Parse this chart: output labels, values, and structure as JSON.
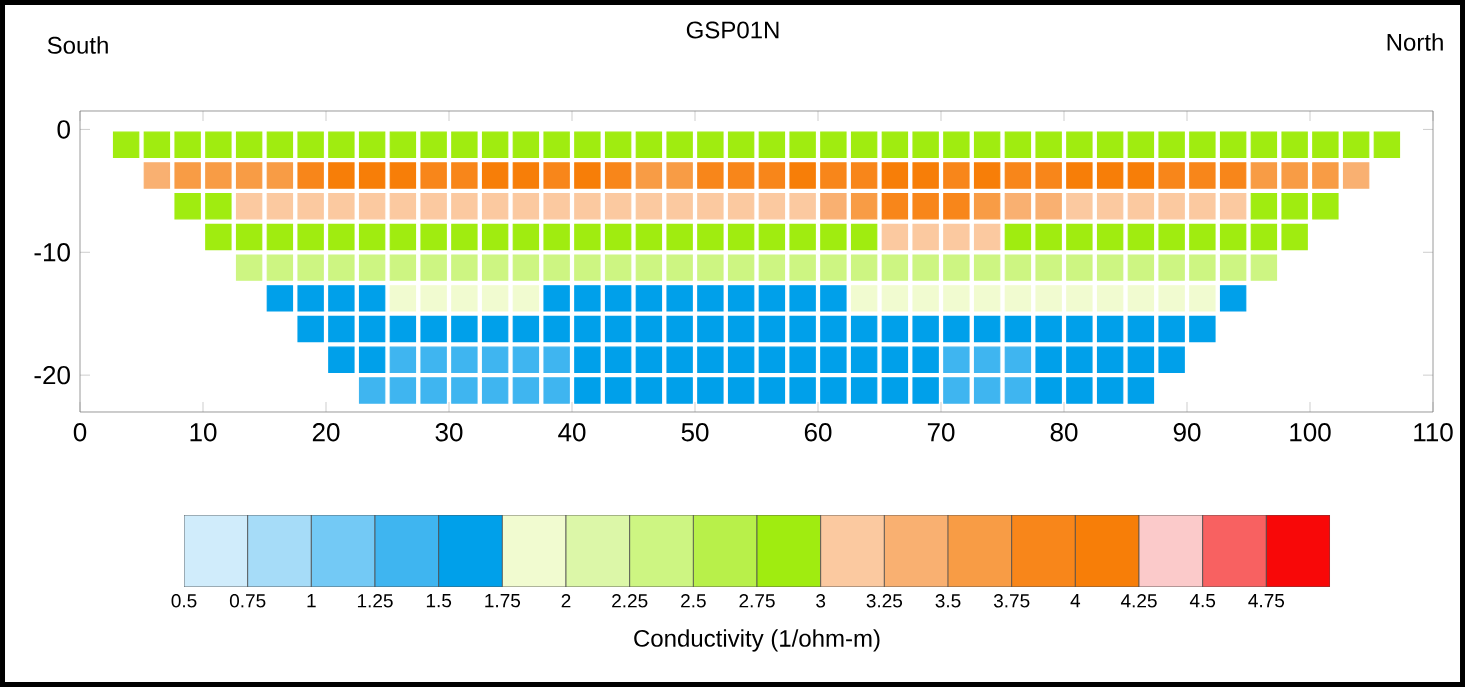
{
  "chart_data": {
    "type": "scatter",
    "title": "GSP01N",
    "annotations": [
      "South",
      "North"
    ],
    "xlim": [
      0,
      110
    ],
    "xticks": [
      0,
      10,
      20,
      30,
      40,
      50,
      60,
      70,
      80,
      90,
      100,
      110
    ],
    "ylim": [
      -23,
      1.5
    ],
    "yticks": [
      0,
      -10,
      -20
    ],
    "marker": "square",
    "series": [
      {
        "x": [
          3.75,
          6.25,
          8.75,
          11.25,
          13.75,
          16.25,
          18.75,
          21.25,
          23.75,
          26.25,
          28.75,
          31.25,
          33.75,
          36.25,
          38.75,
          41.25,
          43.75,
          46.25,
          48.75,
          51.25,
          53.75,
          56.25,
          58.75,
          61.25,
          63.75,
          66.25,
          68.75,
          71.25,
          73.75,
          76.25,
          78.75,
          81.25,
          83.75,
          86.25,
          88.75,
          91.25,
          93.75,
          96.25,
          98.75,
          101.25,
          103.75,
          106.25
        ],
        "values": [
          -1.25,
          -1.25,
          -1.25,
          -1.25,
          -1.25,
          -1.25,
          -1.25,
          -1.25,
          -1.25,
          -1.25,
          -1.25,
          -1.25,
          -1.25,
          -1.25,
          -1.25,
          -1.25,
          -1.25,
          -1.25,
          -1.25,
          -1.25,
          -1.25,
          -1.25,
          -1.25,
          -1.25,
          -1.25,
          -1.25,
          -1.25,
          -1.25,
          -1.25,
          -1.25,
          -1.25,
          -1.25,
          -1.25,
          -1.25,
          -1.25,
          -1.25,
          -1.25,
          -1.25,
          -1.25,
          -1.25,
          -1.25,
          -1.25
        ],
        "color": "#a0ec10",
        "cvalues": [
          2.9,
          2.9,
          2.9,
          2.9,
          2.9,
          2.9,
          2.9,
          2.9,
          2.9,
          2.9,
          2.9,
          2.9,
          2.9,
          2.9,
          2.9,
          2.9,
          2.9,
          2.9,
          2.9,
          2.9,
          2.9,
          2.9,
          2.9,
          2.9,
          2.9,
          2.9,
          2.9,
          2.9,
          2.9,
          2.9,
          2.9,
          2.9,
          2.9,
          2.9,
          2.9,
          2.9,
          2.9,
          2.9,
          2.9,
          2.9,
          2.9,
          2.9
        ]
      },
      {
        "x": [
          6.25,
          8.75,
          11.25,
          13.75,
          16.25,
          18.75,
          21.25,
          23.75,
          26.25,
          28.75,
          31.25,
          33.75,
          36.25,
          38.75,
          41.25,
          43.75,
          46.25,
          48.75,
          51.25,
          53.75,
          56.25,
          58.75,
          61.25,
          63.75,
          66.25,
          68.75,
          71.25,
          73.75,
          76.25,
          78.75,
          81.25,
          83.75,
          86.25,
          88.75,
          91.25,
          93.75,
          96.25,
          98.75,
          101.25,
          103.75
        ],
        "values": [
          -3.75,
          -3.75,
          -3.75,
          -3.75,
          -3.75,
          -3.75,
          -3.75,
          -3.75,
          -3.75,
          -3.75,
          -3.75,
          -3.75,
          -3.75,
          -3.75,
          -3.75,
          -3.75,
          -3.75,
          -3.75,
          -3.75,
          -3.75,
          -3.75,
          -3.75,
          -3.75,
          -3.75,
          -3.75,
          -3.75,
          -3.75,
          -3.75,
          -3.75,
          -3.75,
          -3.75,
          -3.75,
          -3.75,
          -3.75,
          -3.75,
          -3.75,
          -3.75,
          -3.75,
          -3.75,
          -3.75
        ],
        "colors": [
          "#f9b071",
          "#f89c45",
          "#f89c45",
          "#f89c45",
          "#f89c45",
          "#f8861a",
          "#f77e08",
          "#f77e08",
          "#f77e08",
          "#f8861a",
          "#f8861a",
          "#f77e08",
          "#f77e08",
          "#f8861a",
          "#f77e08",
          "#f8861a",
          "#f89c45",
          "#f89c45",
          "#f8861a",
          "#f8861a",
          "#f8861a",
          "#f77e08",
          "#f8861a",
          "#f8861a",
          "#f77e08",
          "#f77e08",
          "#f8861a",
          "#f77e08",
          "#f8861a",
          "#f8861a",
          "#f77e08",
          "#f77e08",
          "#f77e08",
          "#f8861a",
          "#f8861a",
          "#f8861a",
          "#f89c45",
          "#f89c45",
          "#f89c45",
          "#f9b071"
        ],
        "cvalues": [
          3.4,
          3.6,
          3.6,
          3.6,
          3.6,
          3.8,
          4.1,
          4.1,
          4.1,
          3.8,
          3.8,
          4.1,
          4.1,
          3.8,
          4.1,
          3.8,
          3.6,
          3.6,
          3.8,
          3.8,
          3.8,
          4.1,
          3.8,
          3.8,
          4.1,
          4.1,
          3.8,
          4.1,
          3.8,
          3.8,
          4.1,
          4.1,
          4.1,
          3.8,
          3.8,
          3.8,
          3.6,
          3.6,
          3.6,
          3.4
        ]
      },
      {
        "x": [
          8.75,
          11.25,
          13.75,
          16.25,
          18.75,
          21.25,
          23.75,
          26.25,
          28.75,
          31.25,
          33.75,
          36.25,
          38.75,
          41.25,
          43.75,
          46.25,
          48.75,
          51.25,
          53.75,
          56.25,
          58.75,
          61.25,
          63.75,
          66.25,
          68.75,
          71.25,
          73.75,
          76.25,
          78.75,
          81.25,
          83.75,
          86.25,
          88.75,
          91.25,
          93.75,
          96.25,
          98.75,
          101.25
        ],
        "values": [
          -6.25,
          -6.25,
          -6.25,
          -6.25,
          -6.25,
          -6.25,
          -6.25,
          -6.25,
          -6.25,
          -6.25,
          -6.25,
          -6.25,
          -6.25,
          -6.25,
          -6.25,
          -6.25,
          -6.25,
          -6.25,
          -6.25,
          -6.25,
          -6.25,
          -6.25,
          -6.25,
          -6.25,
          -6.25,
          -6.25,
          -6.25,
          -6.25,
          -6.25,
          -6.25,
          -6.25,
          -6.25,
          -6.25,
          -6.25,
          -6.25,
          -6.25,
          -6.25,
          -6.25
        ],
        "colors": [
          "#a0ec10",
          "#a0ec10",
          "#fbc9a0",
          "#fbc9a0",
          "#fbc9a0",
          "#fbc9a0",
          "#fbc9a0",
          "#fbc9a0",
          "#fbc9a0",
          "#fbc9a0",
          "#fbc9a0",
          "#fbc9a0",
          "#fbc9a0",
          "#fbc9a0",
          "#fbc9a0",
          "#fbc9a0",
          "#fbc9a0",
          "#fbc9a0",
          "#fbc9a0",
          "#fbc9a0",
          "#fbc9a0",
          "#f9b071",
          "#f89c45",
          "#f8861a",
          "#f8861a",
          "#f8861a",
          "#f89c45",
          "#f9b071",
          "#f9b071",
          "#fbc9a0",
          "#fbc9a0",
          "#fbc9a0",
          "#fbc9a0",
          "#fbc9a0",
          "#fbc9a0",
          "#a0ec10",
          "#a0ec10",
          "#a0ec10"
        ],
        "cvalues": [
          2.9,
          2.9,
          3.1,
          3.1,
          3.1,
          3.1,
          3.1,
          3.1,
          3.1,
          3.1,
          3.1,
          3.1,
          3.1,
          3.1,
          3.1,
          3.1,
          3.1,
          3.1,
          3.1,
          3.1,
          3.1,
          3.4,
          3.6,
          3.9,
          3.9,
          3.9,
          3.6,
          3.4,
          3.4,
          3.1,
          3.1,
          3.1,
          3.1,
          3.1,
          3.1,
          2.9,
          2.9,
          2.9
        ]
      },
      {
        "x": [
          11.25,
          13.75,
          16.25,
          18.75,
          21.25,
          23.75,
          26.25,
          28.75,
          31.25,
          33.75,
          36.25,
          38.75,
          41.25,
          43.75,
          46.25,
          48.75,
          51.25,
          53.75,
          56.25,
          58.75,
          61.25,
          63.75,
          66.25,
          68.75,
          71.25,
          73.75,
          76.25,
          78.75,
          81.25,
          83.75,
          86.25,
          88.75,
          91.25,
          93.75,
          96.25,
          98.75
        ],
        "values": [
          -8.75,
          -8.75,
          -8.75,
          -8.75,
          -8.75,
          -8.75,
          -8.75,
          -8.75,
          -8.75,
          -8.75,
          -8.75,
          -8.75,
          -8.75,
          -8.75,
          -8.75,
          -8.75,
          -8.75,
          -8.75,
          -8.75,
          -8.75,
          -8.75,
          -8.75,
          -8.75,
          -8.75,
          -8.75,
          -8.75,
          -8.75,
          -8.75,
          -8.75,
          -8.75,
          -8.75,
          -8.75,
          -8.75,
          -8.75,
          -8.75,
          -8.75
        ],
        "colors": [
          "#a0ec10",
          "#a0ec10",
          "#a0ec10",
          "#a0ec10",
          "#a0ec10",
          "#a0ec10",
          "#a0ec10",
          "#a0ec10",
          "#a0ec10",
          "#a0ec10",
          "#a0ec10",
          "#a0ec10",
          "#a0ec10",
          "#a0ec10",
          "#a0ec10",
          "#a0ec10",
          "#a0ec10",
          "#a0ec10",
          "#a0ec10",
          "#a0ec10",
          "#a0ec10",
          "#a0ec10",
          "#fbc9a0",
          "#fbc9a0",
          "#fbc9a0",
          "#fbc9a0",
          "#a0ec10",
          "#a0ec10",
          "#a0ec10",
          "#a0ec10",
          "#a0ec10",
          "#a0ec10",
          "#a0ec10",
          "#a0ec10",
          "#a0ec10",
          "#a0ec10"
        ],
        "cvalues": [
          2.8,
          2.8,
          2.8,
          2.8,
          2.8,
          2.8,
          2.8,
          2.8,
          2.8,
          2.8,
          2.8,
          2.8,
          2.8,
          2.8,
          2.8,
          2.8,
          2.8,
          2.8,
          2.8,
          2.8,
          2.8,
          2.8,
          3.1,
          3.1,
          3.1,
          3.1,
          2.8,
          2.8,
          2.8,
          2.8,
          2.8,
          2.8,
          2.8,
          2.8,
          2.8,
          2.8
        ]
      },
      {
        "x": [
          13.75,
          16.25,
          18.75,
          21.25,
          23.75,
          26.25,
          28.75,
          31.25,
          33.75,
          36.25,
          38.75,
          41.25,
          43.75,
          46.25,
          48.75,
          51.25,
          53.75,
          56.25,
          58.75,
          61.25,
          63.75,
          66.25,
          68.75,
          71.25,
          73.75,
          76.25,
          78.75,
          81.25,
          83.75,
          86.25,
          88.75,
          91.25,
          93.75,
          96.25
        ],
        "values": [
          -11.25,
          -11.25,
          -11.25,
          -11.25,
          -11.25,
          -11.25,
          -11.25,
          -11.25,
          -11.25,
          -11.25,
          -11.25,
          -11.25,
          -11.25,
          -11.25,
          -11.25,
          -11.25,
          -11.25,
          -11.25,
          -11.25,
          -11.25,
          -11.25,
          -11.25,
          -11.25,
          -11.25,
          -11.25,
          -11.25,
          -11.25,
          -11.25,
          -11.25,
          -11.25,
          -11.25,
          -11.25,
          -11.25,
          -11.25
        ],
        "color": "#cdf582",
        "cvalues": [
          2.4,
          2.4,
          2.4,
          2.4,
          2.4,
          2.4,
          2.4,
          2.4,
          2.4,
          2.4,
          2.4,
          2.4,
          2.4,
          2.4,
          2.4,
          2.4,
          2.4,
          2.4,
          2.4,
          2.4,
          2.4,
          2.4,
          2.4,
          2.4,
          2.4,
          2.4,
          2.4,
          2.4,
          2.4,
          2.4,
          2.4,
          2.4,
          2.4,
          2.4
        ]
      },
      {
        "x": [
          16.25,
          18.75,
          21.25,
          23.75,
          26.25,
          28.75,
          31.25,
          33.75,
          36.25,
          38.75,
          41.25,
          43.75,
          46.25,
          48.75,
          51.25,
          53.75,
          56.25,
          58.75,
          61.25,
          63.75,
          66.25,
          68.75,
          71.25,
          73.75,
          76.25,
          78.75,
          81.25,
          83.75,
          86.25,
          88.75,
          91.25,
          93.75
        ],
        "values": [
          -13.75,
          -13.75,
          -13.75,
          -13.75,
          -13.75,
          -13.75,
          -13.75,
          -13.75,
          -13.75,
          -13.75,
          -13.75,
          -13.75,
          -13.75,
          -13.75,
          -13.75,
          -13.75,
          -13.75,
          -13.75,
          -13.75,
          -13.75,
          -13.75,
          -13.75,
          -13.75,
          -13.75,
          -13.75,
          -13.75,
          -13.75,
          -13.75,
          -13.75,
          -13.75,
          -13.75,
          -13.75
        ],
        "colors": [
          "#00a0ea",
          "#00a0ea",
          "#00a0ea",
          "#00a0ea",
          "#f1fbd0",
          "#f1fbd0",
          "#f1fbd0",
          "#f1fbd0",
          "#f1fbd0",
          "#00a0ea",
          "#00a0ea",
          "#00a0ea",
          "#00a0ea",
          "#00a0ea",
          "#00a0ea",
          "#00a0ea",
          "#00a0ea",
          "#00a0ea",
          "#00a0ea",
          "#f1fbd0",
          "#f1fbd0",
          "#f1fbd0",
          "#f1fbd0",
          "#f1fbd0",
          "#f1fbd0",
          "#f1fbd0",
          "#f1fbd0",
          "#f1fbd0",
          "#f1fbd0",
          "#f1fbd0",
          "#f1fbd0",
          "#00a0ea"
        ],
        "cvalues": [
          1.6,
          1.6,
          1.6,
          1.6,
          1.9,
          1.9,
          1.9,
          1.9,
          1.9,
          1.6,
          1.6,
          1.6,
          1.6,
          1.6,
          1.6,
          1.6,
          1.6,
          1.6,
          1.6,
          1.9,
          1.9,
          1.9,
          1.9,
          1.9,
          1.9,
          1.9,
          1.9,
          1.9,
          1.9,
          1.9,
          1.9,
          1.6
        ]
      },
      {
        "x": [
          18.75,
          21.25,
          23.75,
          26.25,
          28.75,
          31.25,
          33.75,
          36.25,
          38.75,
          41.25,
          43.75,
          46.25,
          48.75,
          51.25,
          53.75,
          56.25,
          58.75,
          61.25,
          63.75,
          66.25,
          68.75,
          71.25,
          73.75,
          76.25,
          78.75,
          81.25,
          83.75,
          86.25,
          88.75,
          91.25
        ],
        "values": [
          -16.25,
          -16.25,
          -16.25,
          -16.25,
          -16.25,
          -16.25,
          -16.25,
          -16.25,
          -16.25,
          -16.25,
          -16.25,
          -16.25,
          -16.25,
          -16.25,
          -16.25,
          -16.25,
          -16.25,
          -16.25,
          -16.25,
          -16.25,
          -16.25,
          -16.25,
          -16.25,
          -16.25,
          -16.25,
          -16.25,
          -16.25,
          -16.25,
          -16.25,
          -16.25
        ],
        "color": "#00a0ea",
        "cvalues": [
          1.6,
          1.6,
          1.6,
          1.6,
          1.6,
          1.6,
          1.6,
          1.6,
          1.6,
          1.6,
          1.6,
          1.6,
          1.6,
          1.6,
          1.6,
          1.6,
          1.6,
          1.6,
          1.6,
          1.6,
          1.6,
          1.6,
          1.6,
          1.6,
          1.6,
          1.6,
          1.6,
          1.6,
          1.6,
          1.6
        ]
      },
      {
        "x": [
          21.25,
          23.75,
          26.25,
          28.75,
          31.25,
          33.75,
          36.25,
          38.75,
          41.25,
          43.75,
          46.25,
          48.75,
          51.25,
          53.75,
          56.25,
          58.75,
          61.25,
          63.75,
          66.25,
          68.75,
          71.25,
          73.75,
          76.25,
          78.75,
          81.25,
          83.75,
          86.25,
          88.75
        ],
        "values": [
          -18.75,
          -18.75,
          -18.75,
          -18.75,
          -18.75,
          -18.75,
          -18.75,
          -18.75,
          -18.75,
          -18.75,
          -18.75,
          -18.75,
          -18.75,
          -18.75,
          -18.75,
          -18.75,
          -18.75,
          -18.75,
          -18.75,
          -18.75,
          -18.75,
          -18.75,
          -18.75,
          -18.75,
          -18.75,
          -18.75,
          -18.75,
          -18.75
        ],
        "colors": [
          "#00a0ea",
          "#00a0ea",
          "#3fb5f0",
          "#3fb5f0",
          "#3fb5f0",
          "#3fb5f0",
          "#3fb5f0",
          "#3fb5f0",
          "#00a0ea",
          "#00a0ea",
          "#00a0ea",
          "#00a0ea",
          "#00a0ea",
          "#00a0ea",
          "#00a0ea",
          "#00a0ea",
          "#00a0ea",
          "#00a0ea",
          "#00a0ea",
          "#00a0ea",
          "#3fb5f0",
          "#3fb5f0",
          "#3fb5f0",
          "#00a0ea",
          "#00a0ea",
          "#00a0ea",
          "#00a0ea",
          "#00a0ea"
        ],
        "cvalues": [
          1.6,
          1.6,
          1.4,
          1.4,
          1.4,
          1.4,
          1.4,
          1.4,
          1.6,
          1.6,
          1.6,
          1.6,
          1.6,
          1.6,
          1.6,
          1.6,
          1.6,
          1.6,
          1.6,
          1.6,
          1.4,
          1.4,
          1.4,
          1.6,
          1.6,
          1.6,
          1.6,
          1.6
        ]
      },
      {
        "x": [
          23.75,
          26.25,
          28.75,
          31.25,
          33.75,
          36.25,
          38.75,
          41.25,
          43.75,
          46.25,
          48.75,
          51.25,
          53.75,
          56.25,
          58.75,
          61.25,
          63.75,
          66.25,
          68.75,
          71.25,
          73.75,
          76.25,
          78.75,
          81.25,
          83.75,
          86.25
        ],
        "values": [
          -21.25,
          -21.25,
          -21.25,
          -21.25,
          -21.25,
          -21.25,
          -21.25,
          -21.25,
          -21.25,
          -21.25,
          -21.25,
          -21.25,
          -21.25,
          -21.25,
          -21.25,
          -21.25,
          -21.25,
          -21.25,
          -21.25,
          -21.25,
          -21.25,
          -21.25,
          -21.25,
          -21.25,
          -21.25,
          -21.25
        ],
        "colors": [
          "#3fb5f0",
          "#3fb5f0",
          "#3fb5f0",
          "#3fb5f0",
          "#3fb5f0",
          "#3fb5f0",
          "#3fb5f0",
          "#00a0ea",
          "#00a0ea",
          "#00a0ea",
          "#00a0ea",
          "#00a0ea",
          "#00a0ea",
          "#00a0ea",
          "#00a0ea",
          "#00a0ea",
          "#00a0ea",
          "#00a0ea",
          "#00a0ea",
          "#3fb5f0",
          "#3fb5f0",
          "#3fb5f0",
          "#00a0ea",
          "#00a0ea",
          "#00a0ea",
          "#00a0ea"
        ],
        "cvalues": [
          1.4,
          1.4,
          1.3,
          1.3,
          1.3,
          1.3,
          1.3,
          1.6,
          1.6,
          1.6,
          1.6,
          1.6,
          1.6,
          1.6,
          1.6,
          1.6,
          1.6,
          1.6,
          1.6,
          1.3,
          1.3,
          1.4,
          1.6,
          1.6,
          1.6,
          1.6
        ]
      }
    ],
    "clim": [
      0.5,
      5
    ],
    "cticks": [
      0.5,
      0.75,
      1,
      1.25,
      1.5,
      1.75,
      2,
      2.25,
      2.5,
      2.75,
      3,
      3.25,
      3.5,
      3.75,
      4,
      4.25,
      4.5,
      4.75
    ],
    "clabel": "Conductivity (1/ohm-m)",
    "colors": [
      "#d0ecfb",
      "#a6dcf8",
      "#73c9f5",
      "#3fb5f0",
      "#00a0ea",
      "#f1fbd0",
      "#dcf7a8",
      "#cdf582",
      "#b8f04a",
      "#a0ec10",
      "#fbc9a0",
      "#f9b071",
      "#f89c45",
      "#f8861a",
      "#f77e08",
      "#fbcaca",
      "#f86161",
      "#f80808"
    ]
  }
}
